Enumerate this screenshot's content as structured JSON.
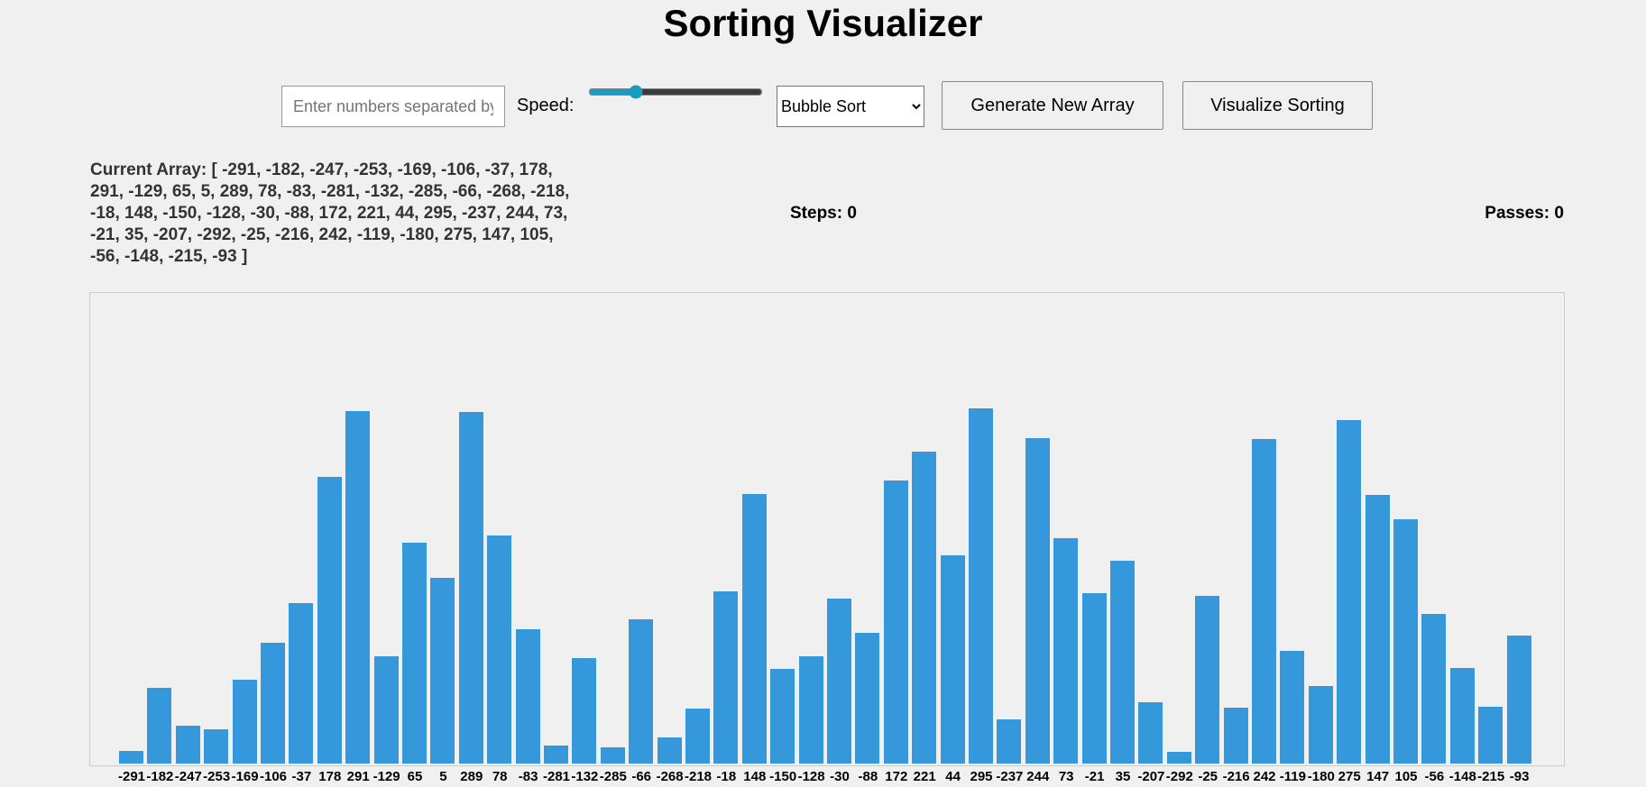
{
  "header": {
    "title": "Sorting Visualizer"
  },
  "controls": {
    "input_placeholder": "Enter numbers separated by commas",
    "speed_label": "Speed:",
    "algorithm": "Bubble Sort",
    "generate_button": "Generate New Array",
    "visualize_button": "Visualize Sorting"
  },
  "info": {
    "array_label": "Current Array:",
    "steps_label": "Steps:",
    "steps": 0,
    "passes_label": "Passes:",
    "passes": 0
  },
  "array": [
    -291,
    -182,
    -247,
    -253,
    -169,
    -106,
    -37,
    178,
    291,
    -129,
    65,
    5,
    289,
    78,
    -83,
    -281,
    -132,
    -285,
    -66,
    -268,
    -218,
    -18,
    148,
    -150,
    -128,
    -30,
    -88,
    172,
    221,
    44,
    295,
    -237,
    244,
    73,
    -21,
    35,
    -207,
    -292,
    -25,
    -216,
    242,
    -119,
    -180,
    275,
    147,
    105,
    -56,
    -148,
    -215,
    -93
  ]
}
